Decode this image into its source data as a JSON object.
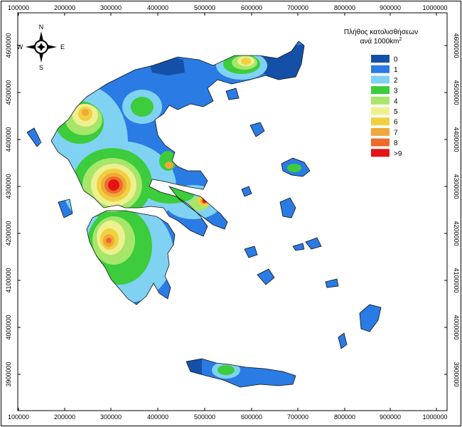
{
  "map": {
    "x_ticks": [
      "100000",
      "200000",
      "300000",
      "400000",
      "500000",
      "600000",
      "700000",
      "800000",
      "900000",
      "1000000"
    ],
    "y_ticks": [
      "4600000",
      "4500000",
      "4400000",
      "4300000",
      "4200000",
      "4100000",
      "4000000",
      "3900000"
    ],
    "compass": {
      "north": "N",
      "south": "S",
      "east": "E",
      "west": "W"
    },
    "legend": {
      "title_line1": "Πλήθος κατολισθήσεων",
      "title_line2_prefix": "ανά 1000km",
      "title_line2_sup": "2",
      "classes": [
        {
          "label": "0",
          "color": "#1450a8"
        },
        {
          "label": "1",
          "color": "#2a7be4"
        },
        {
          "label": "2",
          "color": "#80d2f2"
        },
        {
          "label": "3",
          "color": "#3ccc3c"
        },
        {
          "label": "4",
          "color": "#a6e66a"
        },
        {
          "label": "5",
          "color": "#eef090"
        },
        {
          "label": "6",
          "color": "#f0d040"
        },
        {
          "label": "7",
          "color": "#f0a838"
        },
        {
          "label": "8",
          "color": "#ee6a2a"
        },
        {
          "label": ">9",
          "color": "#e41414"
        }
      ]
    }
  }
}
